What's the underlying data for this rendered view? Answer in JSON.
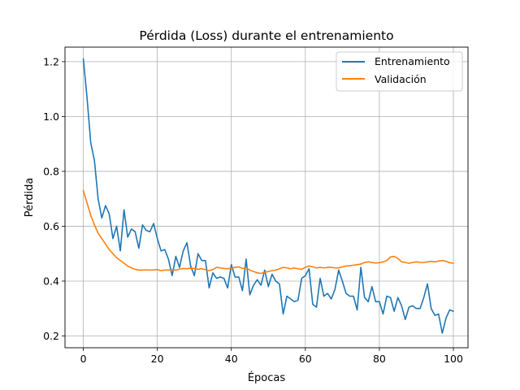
{
  "chart_data": {
    "type": "line",
    "title": "Pérdida (Loss) durante el entrenamiento",
    "xlabel": "Épocas",
    "ylabel": "Pérdida",
    "xlim": [
      -4.95,
      103.95
    ],
    "ylim": [
      0.157,
      1.253
    ],
    "xticks": [
      0,
      20,
      40,
      60,
      80,
      100
    ],
    "yticks": [
      0.2,
      0.4,
      0.6,
      0.8,
      1.0,
      1.2
    ],
    "ytick_labels": [
      "0.2",
      "0.4",
      "0.6",
      "0.8",
      "1.0",
      "1.2"
    ],
    "grid": true,
    "legend_position": "top-right",
    "series": [
      {
        "name": "Entrenamiento",
        "color": "#1f77b4",
        "values": [
          1.21,
          1.07,
          0.905,
          0.84,
          0.7,
          0.63,
          0.675,
          0.645,
          0.555,
          0.6,
          0.51,
          0.66,
          0.56,
          0.59,
          0.58,
          0.52,
          0.605,
          0.585,
          0.58,
          0.61,
          0.555,
          0.51,
          0.515,
          0.48,
          0.42,
          0.49,
          0.45,
          0.51,
          0.54,
          0.455,
          0.42,
          0.5,
          0.475,
          0.475,
          0.375,
          0.43,
          0.41,
          0.415,
          0.41,
          0.375,
          0.46,
          0.415,
          0.415,
          0.365,
          0.48,
          0.35,
          0.385,
          0.405,
          0.385,
          0.44,
          0.38,
          0.425,
          0.4,
          0.39,
          0.28,
          0.345,
          0.335,
          0.325,
          0.33,
          0.41,
          0.42,
          0.445,
          0.315,
          0.305,
          0.41,
          0.345,
          0.355,
          0.335,
          0.37,
          0.44,
          0.4,
          0.355,
          0.345,
          0.345,
          0.295,
          0.45,
          0.34,
          0.325,
          0.38,
          0.325,
          0.325,
          0.28,
          0.345,
          0.34,
          0.29,
          0.34,
          0.31,
          0.26,
          0.305,
          0.31,
          0.3,
          0.3,
          0.34,
          0.39,
          0.3,
          0.275,
          0.28,
          0.21,
          0.265,
          0.295,
          0.29
        ]
      },
      {
        "name": "Validación",
        "color": "#ff7f0e",
        "values": [
          0.73,
          0.685,
          0.64,
          0.605,
          0.575,
          0.555,
          0.535,
          0.515,
          0.5,
          0.485,
          0.475,
          0.465,
          0.455,
          0.448,
          0.443,
          0.44,
          0.44,
          0.441,
          0.44,
          0.441,
          0.442,
          0.438,
          0.44,
          0.44,
          0.442,
          0.44,
          0.444,
          0.446,
          0.445,
          0.447,
          0.446,
          0.443,
          0.445,
          0.442,
          0.438,
          0.442,
          0.45,
          0.448,
          0.446,
          0.445,
          0.447,
          0.45,
          0.452,
          0.446,
          0.448,
          0.44,
          0.435,
          0.43,
          0.428,
          0.432,
          0.435,
          0.438,
          0.44,
          0.445,
          0.45,
          0.448,
          0.445,
          0.448,
          0.445,
          0.443,
          0.45,
          0.455,
          0.452,
          0.448,
          0.45,
          0.448,
          0.45,
          0.45,
          0.448,
          0.448,
          0.452,
          0.455,
          0.456,
          0.458,
          0.46,
          0.462,
          0.468,
          0.47,
          0.468,
          0.466,
          0.467,
          0.47,
          0.475,
          0.488,
          0.49,
          0.483,
          0.47,
          0.468,
          0.465,
          0.468,
          0.47,
          0.468,
          0.468,
          0.47,
          0.472,
          0.47,
          0.473,
          0.475,
          0.472,
          0.467,
          0.465
        ]
      }
    ]
  }
}
